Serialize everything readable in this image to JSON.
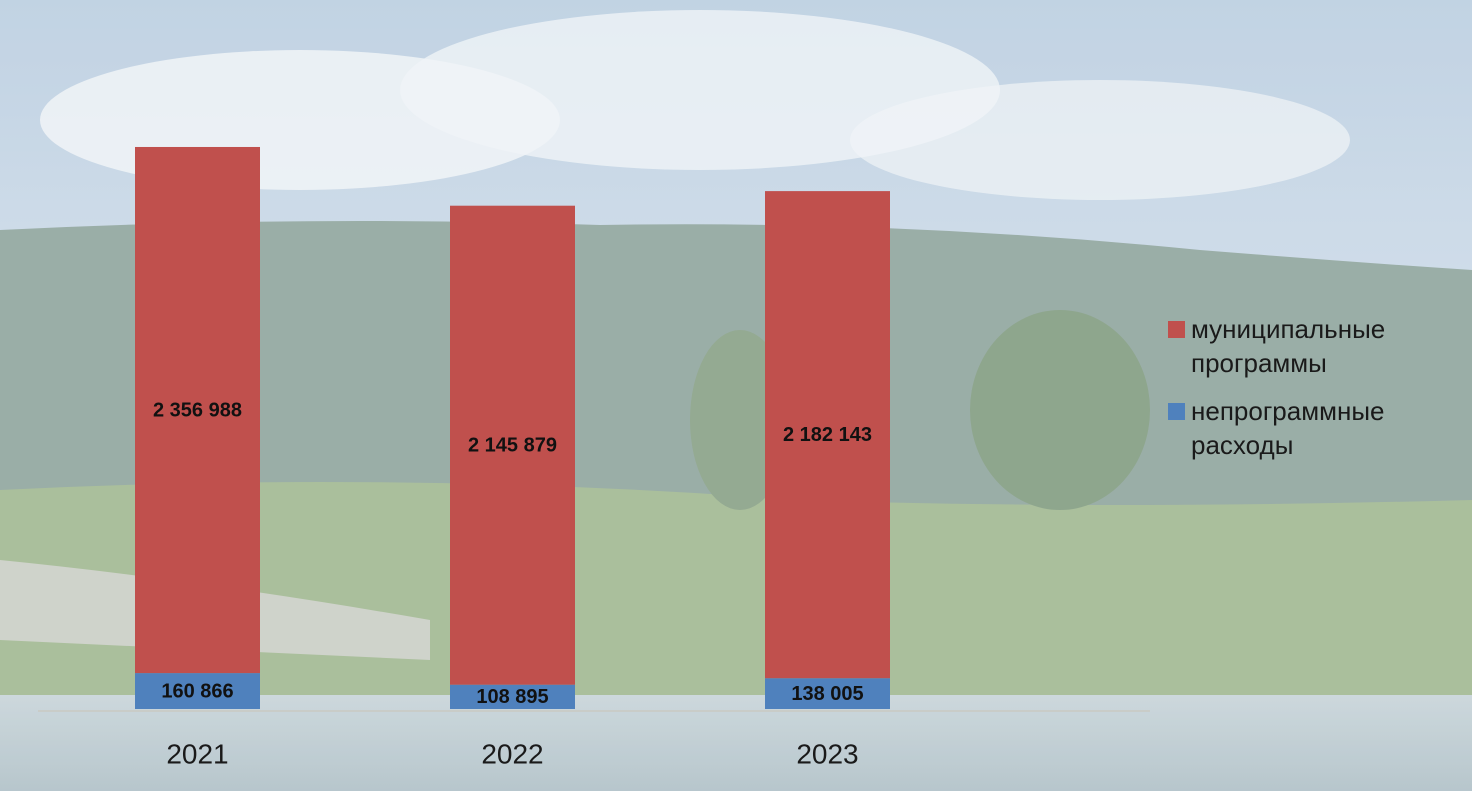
{
  "chart_data": {
    "type": "stacked_bar",
    "categories": [
      "2021",
      "2022",
      "2023"
    ],
    "series": [
      {
        "name": "непрограммные расходы",
        "color": "#4f81bd",
        "values": [
          160866,
          108895,
          138005
        ],
        "value_labels": [
          "160 866",
          "108 895",
          "138 005"
        ]
      },
      {
        "name": "муниципальные программы",
        "color": "#c0504d",
        "values": [
          2356988,
          2145879,
          2182143
        ],
        "value_labels": [
          "2 356 988",
          "2 145 879",
          "2 182 143"
        ]
      }
    ],
    "ylim": [
      0,
      2520000
    ],
    "legend": "right"
  }
}
